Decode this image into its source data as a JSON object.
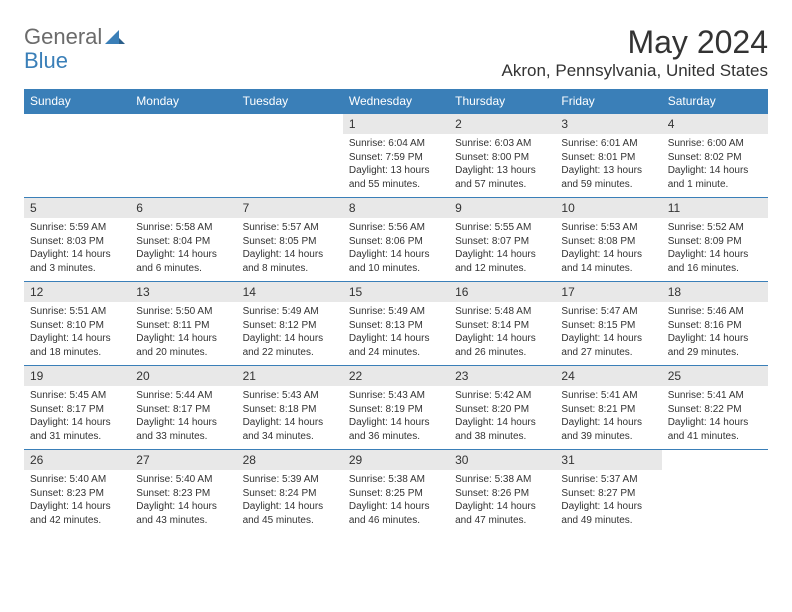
{
  "brand": {
    "partA": "General",
    "partB": "Blue"
  },
  "monthTitle": "May 2024",
  "location": "Akron, Pennsylvania, United States",
  "colors": {
    "headerBg": "#3a7fb8",
    "dayNumBg": "#e8e8e8",
    "text": "#333333",
    "logoGray": "#6b6b6b"
  },
  "dayNames": [
    "Sunday",
    "Monday",
    "Tuesday",
    "Wednesday",
    "Thursday",
    "Friday",
    "Saturday"
  ],
  "weeks": [
    [
      null,
      null,
      null,
      {
        "num": "1",
        "sunrise": "6:04 AM",
        "sunset": "7:59 PM",
        "daylight": "13 hours and 55 minutes."
      },
      {
        "num": "2",
        "sunrise": "6:03 AM",
        "sunset": "8:00 PM",
        "daylight": "13 hours and 57 minutes."
      },
      {
        "num": "3",
        "sunrise": "6:01 AM",
        "sunset": "8:01 PM",
        "daylight": "13 hours and 59 minutes."
      },
      {
        "num": "4",
        "sunrise": "6:00 AM",
        "sunset": "8:02 PM",
        "daylight": "14 hours and 1 minute."
      }
    ],
    [
      {
        "num": "5",
        "sunrise": "5:59 AM",
        "sunset": "8:03 PM",
        "daylight": "14 hours and 3 minutes."
      },
      {
        "num": "6",
        "sunrise": "5:58 AM",
        "sunset": "8:04 PM",
        "daylight": "14 hours and 6 minutes."
      },
      {
        "num": "7",
        "sunrise": "5:57 AM",
        "sunset": "8:05 PM",
        "daylight": "14 hours and 8 minutes."
      },
      {
        "num": "8",
        "sunrise": "5:56 AM",
        "sunset": "8:06 PM",
        "daylight": "14 hours and 10 minutes."
      },
      {
        "num": "9",
        "sunrise": "5:55 AM",
        "sunset": "8:07 PM",
        "daylight": "14 hours and 12 minutes."
      },
      {
        "num": "10",
        "sunrise": "5:53 AM",
        "sunset": "8:08 PM",
        "daylight": "14 hours and 14 minutes."
      },
      {
        "num": "11",
        "sunrise": "5:52 AM",
        "sunset": "8:09 PM",
        "daylight": "14 hours and 16 minutes."
      }
    ],
    [
      {
        "num": "12",
        "sunrise": "5:51 AM",
        "sunset": "8:10 PM",
        "daylight": "14 hours and 18 minutes."
      },
      {
        "num": "13",
        "sunrise": "5:50 AM",
        "sunset": "8:11 PM",
        "daylight": "14 hours and 20 minutes."
      },
      {
        "num": "14",
        "sunrise": "5:49 AM",
        "sunset": "8:12 PM",
        "daylight": "14 hours and 22 minutes."
      },
      {
        "num": "15",
        "sunrise": "5:49 AM",
        "sunset": "8:13 PM",
        "daylight": "14 hours and 24 minutes."
      },
      {
        "num": "16",
        "sunrise": "5:48 AM",
        "sunset": "8:14 PM",
        "daylight": "14 hours and 26 minutes."
      },
      {
        "num": "17",
        "sunrise": "5:47 AM",
        "sunset": "8:15 PM",
        "daylight": "14 hours and 27 minutes."
      },
      {
        "num": "18",
        "sunrise": "5:46 AM",
        "sunset": "8:16 PM",
        "daylight": "14 hours and 29 minutes."
      }
    ],
    [
      {
        "num": "19",
        "sunrise": "5:45 AM",
        "sunset": "8:17 PM",
        "daylight": "14 hours and 31 minutes."
      },
      {
        "num": "20",
        "sunrise": "5:44 AM",
        "sunset": "8:17 PM",
        "daylight": "14 hours and 33 minutes."
      },
      {
        "num": "21",
        "sunrise": "5:43 AM",
        "sunset": "8:18 PM",
        "daylight": "14 hours and 34 minutes."
      },
      {
        "num": "22",
        "sunrise": "5:43 AM",
        "sunset": "8:19 PM",
        "daylight": "14 hours and 36 minutes."
      },
      {
        "num": "23",
        "sunrise": "5:42 AM",
        "sunset": "8:20 PM",
        "daylight": "14 hours and 38 minutes."
      },
      {
        "num": "24",
        "sunrise": "5:41 AM",
        "sunset": "8:21 PM",
        "daylight": "14 hours and 39 minutes."
      },
      {
        "num": "25",
        "sunrise": "5:41 AM",
        "sunset": "8:22 PM",
        "daylight": "14 hours and 41 minutes."
      }
    ],
    [
      {
        "num": "26",
        "sunrise": "5:40 AM",
        "sunset": "8:23 PM",
        "daylight": "14 hours and 42 minutes."
      },
      {
        "num": "27",
        "sunrise": "5:40 AM",
        "sunset": "8:23 PM",
        "daylight": "14 hours and 43 minutes."
      },
      {
        "num": "28",
        "sunrise": "5:39 AM",
        "sunset": "8:24 PM",
        "daylight": "14 hours and 45 minutes."
      },
      {
        "num": "29",
        "sunrise": "5:38 AM",
        "sunset": "8:25 PM",
        "daylight": "14 hours and 46 minutes."
      },
      {
        "num": "30",
        "sunrise": "5:38 AM",
        "sunset": "8:26 PM",
        "daylight": "14 hours and 47 minutes."
      },
      {
        "num": "31",
        "sunrise": "5:37 AM",
        "sunset": "8:27 PM",
        "daylight": "14 hours and 49 minutes."
      },
      null
    ]
  ],
  "labels": {
    "sunrisePrefix": "Sunrise: ",
    "sunsetPrefix": "Sunset: ",
    "daylightPrefix": "Daylight: "
  }
}
